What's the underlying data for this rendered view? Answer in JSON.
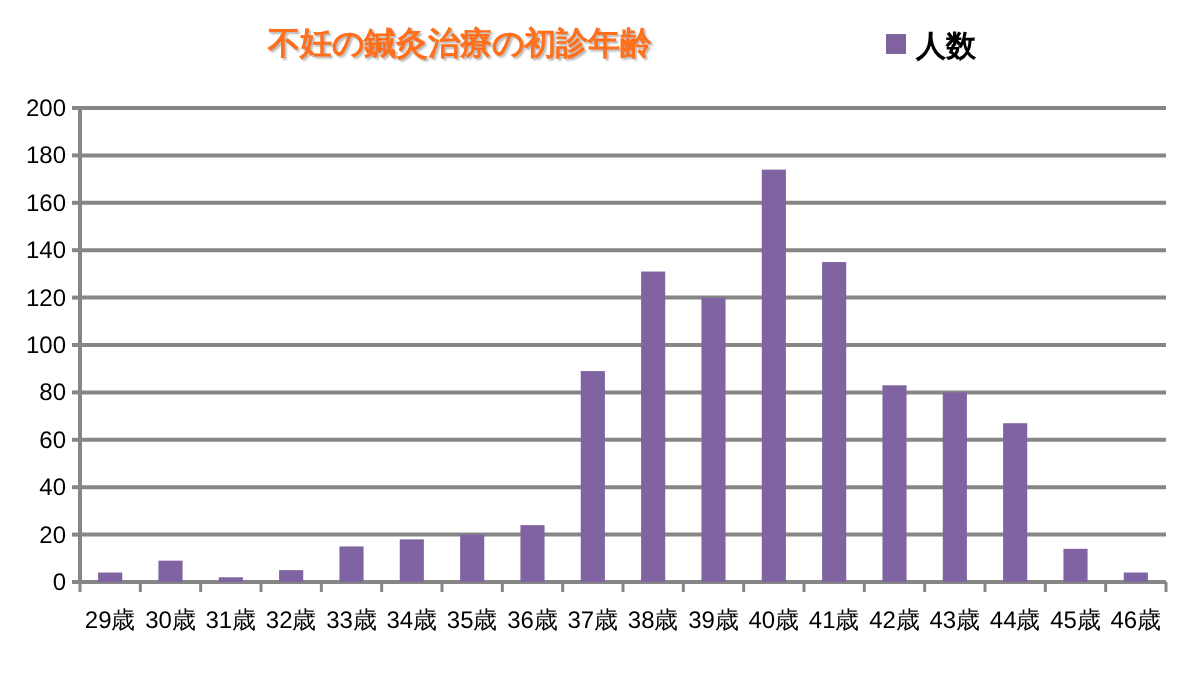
{
  "chart_data": {
    "type": "bar",
    "title": "不妊の鍼灸治療の初診年齢",
    "categories": [
      "29歳",
      "30歳",
      "31歳",
      "32歳",
      "33歳",
      "34歳",
      "35歳",
      "36歳",
      "37歳",
      "38歳",
      "39歳",
      "40歳",
      "41歳",
      "42歳",
      "43歳",
      "44歳",
      "45歳",
      "46歳"
    ],
    "series": [
      {
        "name": "人数",
        "color": "#8064a2",
        "values": [
          4,
          9,
          2,
          5,
          15,
          18,
          20,
          24,
          89,
          131,
          120,
          174,
          135,
          83,
          80,
          67,
          14,
          4
        ]
      }
    ],
    "ylim": [
      0,
      200
    ],
    "yticks": [
      0,
      20,
      40,
      60,
      80,
      100,
      120,
      140,
      160,
      180,
      200
    ],
    "grid": "y",
    "legend": "top right"
  }
}
